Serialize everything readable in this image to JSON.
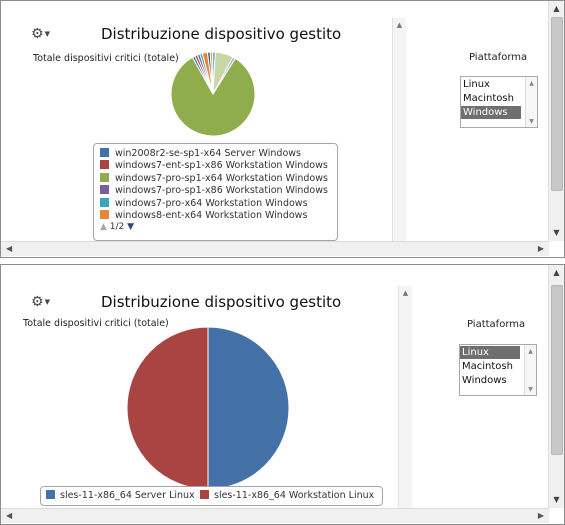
{
  "panel_top": {
    "title": "Distribuzione dispositivo gestito",
    "subtitle": "Totale dispositivi critici (totale)",
    "platform_label": "Piattaforma",
    "platform_options": [
      "Linux",
      "Macintosh",
      "Windows"
    ],
    "platform_selected": "Windows",
    "legend": [
      {
        "name": "win2008r2-se-sp1-x64 Server Windows",
        "color": "#4472a8"
      },
      {
        "name": "windows7-ent-sp1-x86 Workstation Windows",
        "color": "#a94442"
      },
      {
        "name": "windows7-pro-sp1-x64 Workstation Windows",
        "color": "#8fad4c"
      },
      {
        "name": "windows7-pro-sp1-x86 Workstation Windows",
        "color": "#7b5e9e"
      },
      {
        "name": "windows7-pro-x64 Workstation Windows",
        "color": "#3fa3b9"
      },
      {
        "name": "windows8-ent-x64 Workstation Windows",
        "color": "#e8853a"
      }
    ],
    "pager_text": "1/2"
  },
  "panel_bottom": {
    "title": "Distribuzione dispositivo gestito",
    "subtitle": "Totale dispositivi critici (totale)",
    "platform_label": "Piattaforma",
    "platform_options": [
      "Linux",
      "Macintosh",
      "Windows"
    ],
    "platform_selected": "Linux",
    "legend": [
      {
        "name": "sles-11-x86_64 Server Linux",
        "color": "#4472a8"
      },
      {
        "name": "sles-11-x86_64 Workstation Linux",
        "color": "#a94442"
      }
    ]
  },
  "icons": {
    "settings": "gear-icon",
    "pager_up": "triangle-up-icon",
    "pager_down": "triangle-down-icon"
  },
  "chart_data": [
    {
      "type": "pie",
      "title": "Distribuzione dispositivo gestito",
      "subtitle": "Totale dispositivi critici (totale)",
      "slices": [
        {
          "name": "windows7-pro-sp1-x64 Workstation Windows",
          "value": 83,
          "color": "#8fad4c"
        },
        {
          "name": "win2008r2-se-sp1-x64 Server Windows",
          "value": 1,
          "color": "#4472a8"
        },
        {
          "name": "windows7-ent-sp1-x86 Workstation Windows",
          "value": 1,
          "color": "#a94442"
        },
        {
          "name": "windows7-pro-sp1-x86 Workstation Windows",
          "value": 1,
          "color": "#7b5e9e"
        },
        {
          "name": "windows7-pro-x64 Workstation Windows",
          "value": 1,
          "color": "#3fa3b9"
        },
        {
          "name": "windows8-ent-x64 Workstation Windows",
          "value": 2,
          "color": "#e8853a"
        },
        {
          "value": 1,
          "color": "#2e4f7a"
        },
        {
          "value": 1,
          "color": "#c9b36a"
        },
        {
          "value": 1,
          "color": "#6d8bb8"
        },
        {
          "value": 7,
          "color": "#c6d8a6"
        },
        {
          "value": 1,
          "color": "#b7a7cf"
        }
      ],
      "legend_position": "bottom"
    },
    {
      "type": "pie",
      "title": "Distribuzione dispositivo gestito",
      "subtitle": "Totale dispositivi critici (totale)",
      "slices": [
        {
          "name": "sles-11-x86_64 Server Linux",
          "value": 50,
          "color": "#4472a8"
        },
        {
          "name": "sles-11-x86_64 Workstation Linux",
          "value": 50,
          "color": "#a94442"
        }
      ],
      "legend_position": "bottom"
    }
  ]
}
